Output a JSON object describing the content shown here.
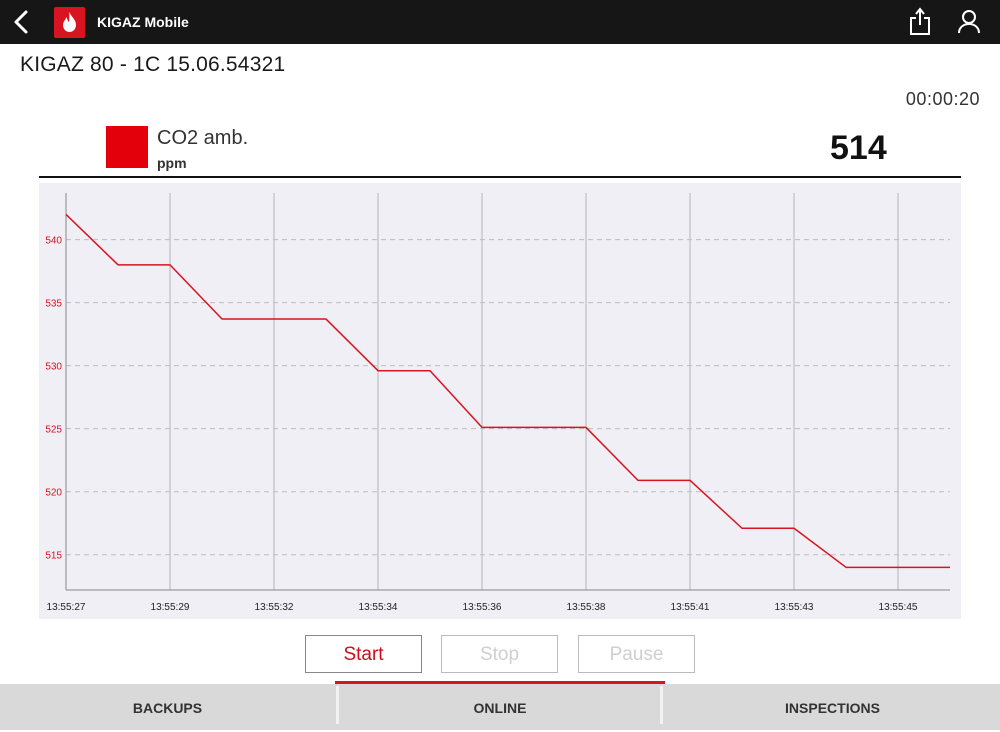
{
  "header": {
    "app_title": "KIGAZ Mobile",
    "icons": {
      "back": "chevron-left-icon",
      "logo": "flame-icon",
      "share": "share-icon",
      "user": "user-icon"
    },
    "colors": {
      "bar": "#161616",
      "brand": "#d7141f"
    }
  },
  "device": {
    "title": "KIGAZ 80 - 1C 15.06.54321"
  },
  "timer": "00:00:20",
  "measurement": {
    "name": "CO2 amb.",
    "unit": "ppm",
    "value": "514",
    "color": "#e3000b"
  },
  "chart_data": {
    "type": "line",
    "x_ticks": [
      "13:55:27",
      "13:55:29",
      "13:55:32",
      "13:55:34",
      "13:55:36",
      "13:55:38",
      "13:55:41",
      "13:55:43",
      "13:55:45"
    ],
    "y_ticks": [
      515,
      520,
      525,
      530,
      535,
      540
    ],
    "ylim": [
      512.2,
      543.7
    ],
    "grid": true,
    "series": [
      {
        "color": "#d7141f",
        "points": [
          [
            0,
            542
          ],
          [
            0.5,
            538
          ],
          [
            1,
            538
          ],
          [
            1.5,
            533.7
          ],
          [
            2,
            533.7
          ],
          [
            2.5,
            533.7
          ],
          [
            3,
            529.6
          ],
          [
            3.5,
            529.6
          ],
          [
            4,
            525.1
          ],
          [
            4.5,
            525.1
          ],
          [
            5,
            525.1
          ],
          [
            5.5,
            520.9
          ],
          [
            6,
            520.9
          ],
          [
            6.5,
            517.1
          ],
          [
            7,
            517.1
          ],
          [
            7.5,
            514
          ],
          [
            8,
            514
          ],
          [
            8.5,
            514
          ]
        ]
      }
    ]
  },
  "controls": {
    "start": "Start",
    "stop": "Stop",
    "pause": "Pause"
  },
  "tabs": [
    {
      "label": "BACKUPS"
    },
    {
      "label": "ONLINE",
      "active": true
    },
    {
      "label": "INSPECTIONS"
    }
  ]
}
